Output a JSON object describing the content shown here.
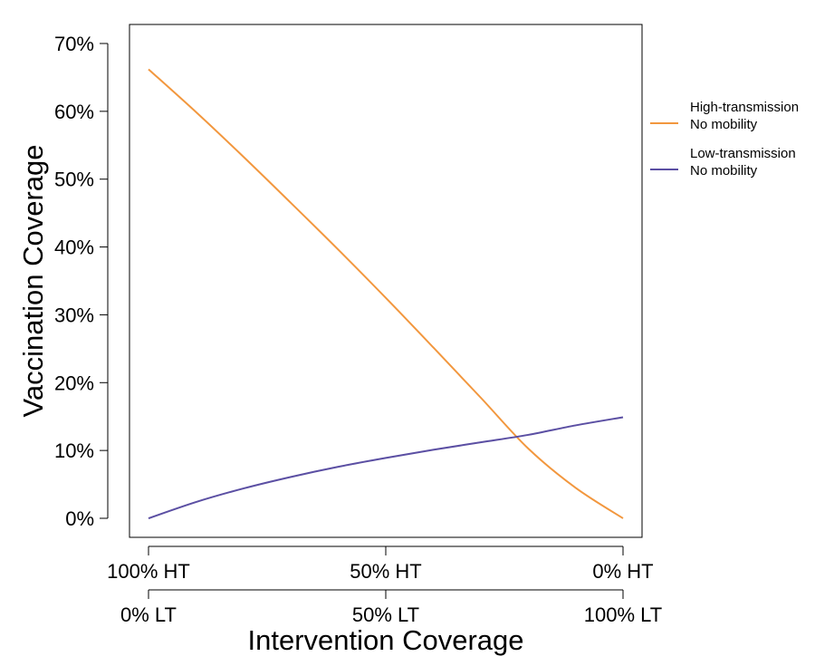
{
  "chart_data": {
    "type": "line",
    "title": "",
    "xlabel": "Intervention Coverage",
    "ylabel": "Vaccination Coverage",
    "x": [
      0,
      10,
      20,
      30,
      40,
      50,
      60,
      70,
      80,
      90,
      100
    ],
    "xlim": [
      0,
      100
    ],
    "ylim": [
      0,
      70
    ],
    "x_axis_top_ticks": [
      "100% HT",
      "50% HT",
      "0% HT"
    ],
    "x_axis_bottom_ticks": [
      "0% LT",
      "50% LT",
      "100% LT"
    ],
    "y_ticks": [
      "0%",
      "10%",
      "20%",
      "30%",
      "40%",
      "50%",
      "60%",
      "70%"
    ],
    "grid": false,
    "legend_position": "right",
    "series": [
      {
        "legend_line1": "High-transmission",
        "legend_line2": "No mobility",
        "color": "#F2973E",
        "values": [
          66.2,
          59.9,
          53.3,
          46.5,
          39.6,
          32.5,
          25.2,
          17.8,
          10.3,
          4.5,
          0.0
        ]
      },
      {
        "legend_line1": "Low-transmission",
        "legend_line2": "No mobility",
        "color": "#5B4FA3",
        "values": [
          0.0,
          2.4,
          4.4,
          6.1,
          7.6,
          8.9,
          10.1,
          11.2,
          12.3,
          13.7,
          14.9
        ]
      }
    ]
  }
}
